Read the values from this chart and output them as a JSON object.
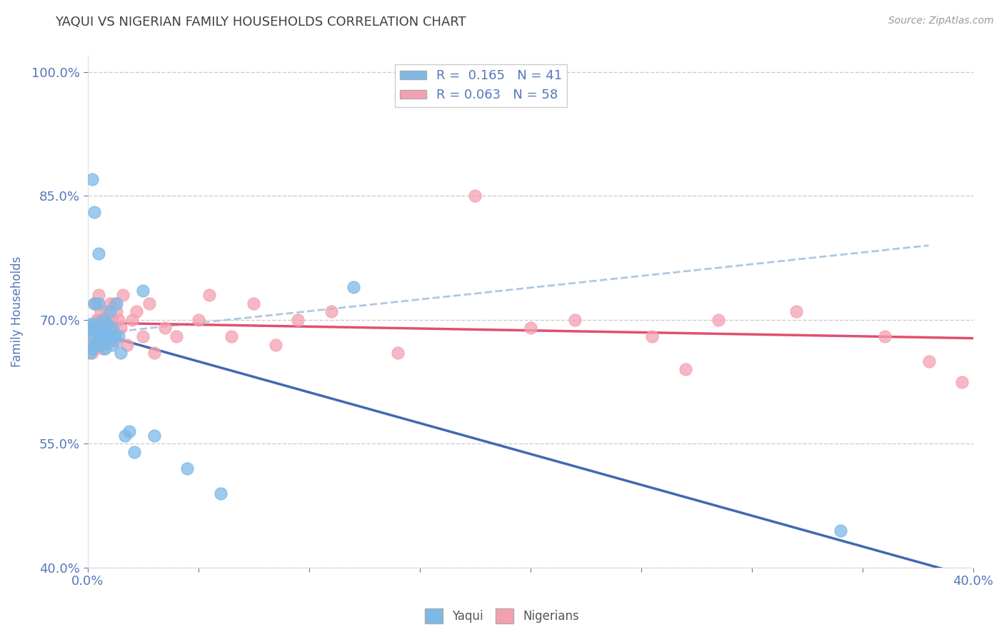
{
  "title": "YAQUI VS NIGERIAN FAMILY HOUSEHOLDS CORRELATION CHART",
  "source": "Source: ZipAtlas.com",
  "ylabel": "Family Households",
  "xlim": [
    0.0,
    0.4
  ],
  "ylim": [
    0.4,
    1.02
  ],
  "xticks": [
    0.0,
    0.05,
    0.1,
    0.15,
    0.2,
    0.25,
    0.3,
    0.35,
    0.4
  ],
  "xticklabels": [
    "0.0%",
    "",
    "",
    "",
    "",
    "",
    "",
    "",
    "40.0%"
  ],
  "yticks": [
    0.4,
    0.55,
    0.7,
    0.85,
    1.0
  ],
  "yticklabels": [
    "40.0%",
    "55.0%",
    "70.0%",
    "85.0%",
    "100.0%"
  ],
  "yaqui_color": "#7cb9e8",
  "nigerian_color": "#f4a0b0",
  "yaqui_line_color": "#4169b0",
  "nigerian_line_color": "#e05070",
  "dashed_line_color": "#b0c8e0",
  "R_yaqui": 0.165,
  "N_yaqui": 41,
  "R_nigerian": 0.063,
  "N_nigerian": 58,
  "yaqui_x": [
    0.001,
    0.001,
    0.001,
    0.002,
    0.002,
    0.002,
    0.003,
    0.003,
    0.003,
    0.003,
    0.004,
    0.004,
    0.004,
    0.005,
    0.005,
    0.005,
    0.006,
    0.006,
    0.007,
    0.007,
    0.008,
    0.008,
    0.009,
    0.009,
    0.01,
    0.01,
    0.011,
    0.011,
    0.012,
    0.013,
    0.014,
    0.015,
    0.017,
    0.019,
    0.021,
    0.025,
    0.03,
    0.045,
    0.06,
    0.12,
    0.34
  ],
  "yaqui_y": [
    0.69,
    0.695,
    0.66,
    0.87,
    0.68,
    0.665,
    0.83,
    0.72,
    0.695,
    0.67,
    0.69,
    0.685,
    0.67,
    0.78,
    0.72,
    0.685,
    0.69,
    0.67,
    0.7,
    0.68,
    0.685,
    0.665,
    0.695,
    0.675,
    0.71,
    0.68,
    0.69,
    0.67,
    0.68,
    0.72,
    0.68,
    0.66,
    0.56,
    0.565,
    0.54,
    0.735,
    0.56,
    0.52,
    0.49,
    0.74,
    0.445
  ],
  "nigerian_x": [
    0.001,
    0.002,
    0.002,
    0.003,
    0.003,
    0.003,
    0.004,
    0.004,
    0.004,
    0.005,
    0.005,
    0.005,
    0.006,
    0.006,
    0.007,
    0.007,
    0.007,
    0.008,
    0.008,
    0.009,
    0.009,
    0.01,
    0.01,
    0.011,
    0.011,
    0.012,
    0.012,
    0.013,
    0.013,
    0.014,
    0.015,
    0.016,
    0.018,
    0.02,
    0.022,
    0.025,
    0.028,
    0.03,
    0.035,
    0.04,
    0.05,
    0.055,
    0.065,
    0.075,
    0.085,
    0.095,
    0.11,
    0.14,
    0.175,
    0.2,
    0.22,
    0.255,
    0.27,
    0.285,
    0.32,
    0.36,
    0.38,
    0.395
  ],
  "nigerian_y": [
    0.67,
    0.68,
    0.66,
    0.72,
    0.69,
    0.665,
    0.72,
    0.7,
    0.68,
    0.73,
    0.7,
    0.675,
    0.71,
    0.685,
    0.69,
    0.7,
    0.665,
    0.7,
    0.68,
    0.71,
    0.68,
    0.72,
    0.69,
    0.7,
    0.675,
    0.72,
    0.685,
    0.71,
    0.675,
    0.7,
    0.69,
    0.73,
    0.67,
    0.7,
    0.71,
    0.68,
    0.72,
    0.66,
    0.69,
    0.68,
    0.7,
    0.73,
    0.68,
    0.72,
    0.67,
    0.7,
    0.71,
    0.66,
    0.85,
    0.69,
    0.7,
    0.68,
    0.64,
    0.7,
    0.71,
    0.68,
    0.65,
    0.625
  ],
  "background_color": "#ffffff",
  "grid_color": "#cccccc",
  "title_color": "#404040",
  "axis_label_color": "#5577bb",
  "tick_color": "#5577bb"
}
